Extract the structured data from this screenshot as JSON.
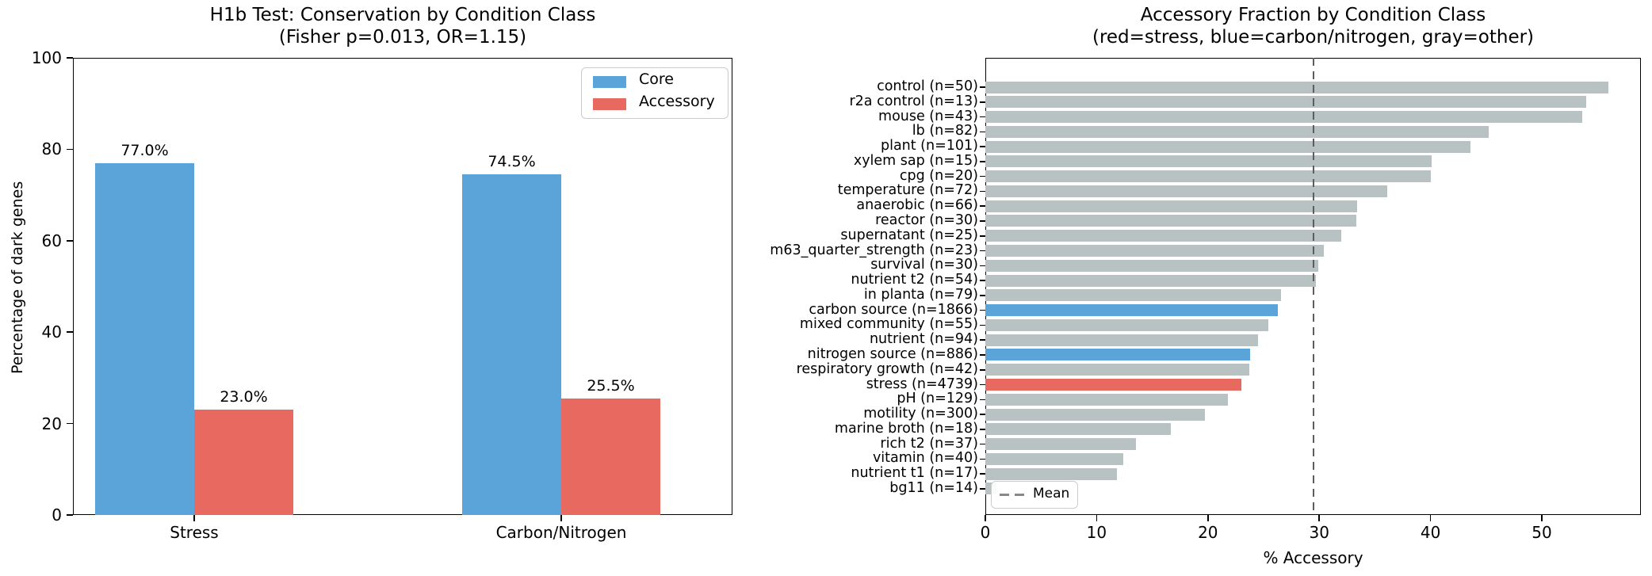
{
  "colors": {
    "core_blue": "#5ba4da",
    "accessory_red": "#e8695f",
    "other_gray": "#b8c2c2",
    "mean_line_gray": "#5d5d5d",
    "legend_dash_gray": "#888888",
    "axis_black": "#000000"
  },
  "chart_data": [
    {
      "type": "bar",
      "orientation": "vertical",
      "title": "H1b Test: Conservation by Condition Class",
      "subtitle": "(Fisher p=0.013, OR=1.15)",
      "ylabel": "Percentage of dark genes",
      "ylim": [
        0,
        100
      ],
      "yticks": [
        0,
        20,
        40,
        60,
        80,
        100
      ],
      "categories": [
        "Stress",
        "Carbon/Nitrogen"
      ],
      "series": [
        {
          "name": "Core",
          "color_key": "core_blue",
          "values": [
            77.0,
            74.5
          ],
          "bar_labels": [
            "77.0%",
            "74.5%"
          ]
        },
        {
          "name": "Accessory",
          "color_key": "accessory_red",
          "values": [
            23.0,
            25.5
          ],
          "bar_labels": [
            "23.0%",
            "25.5%"
          ]
        }
      ],
      "legend": {
        "position": "upper right",
        "entries": [
          "Core",
          "Accessory"
        ]
      },
      "grid": false
    },
    {
      "type": "bar",
      "orientation": "horizontal",
      "title": "Accessory Fraction by Condition Class",
      "subtitle": "(red=stress, blue=carbon/nitrogen, gray=other)",
      "xlabel": "% Accessory",
      "xlim": [
        0,
        58.9
      ],
      "xticks": [
        0,
        10,
        20,
        30,
        40,
        50
      ],
      "mean_line": {
        "value": 29.5,
        "label": "Mean",
        "style": "dashed"
      },
      "legend": {
        "position": "lower left",
        "entries": [
          "Mean"
        ]
      },
      "grid": false,
      "bars": [
        {
          "label": "control (n=50)",
          "value": 56.0,
          "group": "other"
        },
        {
          "label": "r2a control (n=13)",
          "value": 54.0,
          "group": "other"
        },
        {
          "label": "mouse (n=43)",
          "value": 53.6,
          "group": "other"
        },
        {
          "label": "lb (n=82)",
          "value": 45.2,
          "group": "other"
        },
        {
          "label": "plant (n=101)",
          "value": 43.6,
          "group": "other"
        },
        {
          "label": "xylem sap (n=15)",
          "value": 40.1,
          "group": "other"
        },
        {
          "label": "cpg (n=20)",
          "value": 40.0,
          "group": "other"
        },
        {
          "label": "temperature (n=72)",
          "value": 36.1,
          "group": "other"
        },
        {
          "label": "anaerobic (n=66)",
          "value": 33.4,
          "group": "other"
        },
        {
          "label": "reactor (n=30)",
          "value": 33.3,
          "group": "other"
        },
        {
          "label": "supernatant (n=25)",
          "value": 32.0,
          "group": "other"
        },
        {
          "label": "m63_quarter_strength (n=23)",
          "value": 30.4,
          "group": "other"
        },
        {
          "label": "survival (n=30)",
          "value": 29.9,
          "group": "other"
        },
        {
          "label": "nutrient t2 (n=54)",
          "value": 29.7,
          "group": "other"
        },
        {
          "label": "in planta (n=79)",
          "value": 26.6,
          "group": "other"
        },
        {
          "label": "carbon source (n=1866)",
          "value": 26.3,
          "group": "carbon_nitrogen"
        },
        {
          "label": "mixed community (n=55)",
          "value": 25.4,
          "group": "other"
        },
        {
          "label": "nutrient (n=94)",
          "value": 24.5,
          "group": "other"
        },
        {
          "label": "nitrogen source (n=886)",
          "value": 23.8,
          "group": "carbon_nitrogen"
        },
        {
          "label": "respiratory growth (n=42)",
          "value": 23.7,
          "group": "other"
        },
        {
          "label": "stress (n=4739)",
          "value": 23.0,
          "group": "stress"
        },
        {
          "label": "pH (n=129)",
          "value": 21.8,
          "group": "other"
        },
        {
          "label": "motility (n=300)",
          "value": 19.7,
          "group": "other"
        },
        {
          "label": "marine broth (n=18)",
          "value": 16.7,
          "group": "other"
        },
        {
          "label": "rich t2 (n=37)",
          "value": 13.5,
          "group": "other"
        },
        {
          "label": "vitamin (n=40)",
          "value": 12.4,
          "group": "other"
        },
        {
          "label": "nutrient t1 (n=17)",
          "value": 11.8,
          "group": "other"
        },
        {
          "label": "bg11 (n=14)",
          "value": 1.0,
          "group": "other"
        }
      ]
    }
  ]
}
